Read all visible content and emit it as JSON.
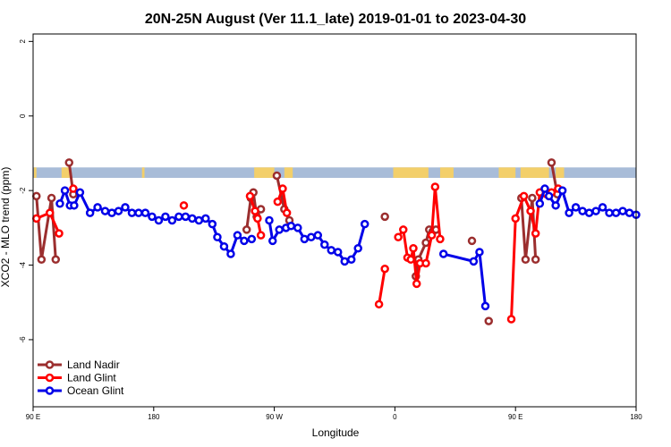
{
  "chart_data": {
    "type": "line",
    "title": "20N-25N August (Ver 11.1_late)   2019-01-01 to 2023-04-30",
    "xlabel": "Longitude",
    "ylabel": "XCO2 - MLO trend (ppm)",
    "xlim": [
      0,
      360
    ],
    "ylim": [
      -7.8,
      2.2
    ],
    "x_ticks": [
      {
        "value": 0,
        "label": "90 E"
      },
      {
        "value": 72,
        "label": "180"
      },
      {
        "value": 144,
        "label": "90 W"
      },
      {
        "value": 216,
        "label": "0"
      },
      {
        "value": 288,
        "label": "90 E"
      },
      {
        "value": 360,
        "label": "180"
      }
    ],
    "y_ticks": [
      {
        "value": 2,
        "label": "2"
      },
      {
        "value": 0,
        "label": "0"
      },
      {
        "value": -2,
        "label": "-2"
      },
      {
        "value": -4,
        "label": "-4"
      },
      {
        "value": -6,
        "label": "-6"
      }
    ],
    "grid": false,
    "legend_position": "bottom-left",
    "land_strip": {
      "y_top": -1.38,
      "y_bottom": -1.66,
      "ocean_color": "#a8bcd8",
      "land_color": "#f3cf6a",
      "land_spans": [
        [
          0.5,
          2
        ],
        [
          17,
          22.5
        ],
        [
          65,
          66.5
        ],
        [
          132,
          144
        ],
        [
          150,
          155
        ],
        [
          215,
          236
        ],
        [
          243,
          251
        ],
        [
          278,
          288
        ],
        [
          291,
          308
        ],
        [
          312,
          317
        ]
      ]
    },
    "series": [
      {
        "name": "Land Nadir",
        "color": "#9b2e2e",
        "segments": [
          [
            [
              2,
              -2.15
            ],
            [
              5,
              -3.85
            ],
            [
              11,
              -2.2
            ],
            [
              13.5,
              -3.85
            ]
          ],
          [
            [
              21.5,
              -1.25
            ],
            [
              24,
              -2.1
            ]
          ],
          [
            [
              127.5,
              -3.05
            ],
            [
              130,
              -2.2
            ],
            [
              131.5,
              -2.05
            ],
            [
              133.5,
              -2.7
            ],
            [
              136,
              -2.5
            ]
          ],
          [
            [
              145.5,
              -1.6
            ],
            [
              150,
              -2.5
            ],
            [
              153,
              -2.8
            ]
          ],
          [
            [
              210,
              -2.7
            ]
          ],
          [
            [
              228.5,
              -4.3
            ],
            [
              230,
              -3.85
            ],
            [
              234.5,
              -3.4
            ],
            [
              236.5,
              -3.05
            ],
            [
              238.5,
              -3.1
            ],
            [
              240.5,
              -3.05
            ]
          ],
          [
            [
              262,
              -3.35
            ]
          ],
          [
            [
              272,
              -5.5
            ]
          ],
          [
            [
              291.5,
              -2.2
            ],
            [
              294,
              -3.85
            ],
            [
              298,
              -2.2
            ],
            [
              300,
              -3.85
            ]
          ],
          [
            [
              309.5,
              -1.25
            ],
            [
              313,
              -2.1
            ]
          ]
        ]
      },
      {
        "name": "Land Glint",
        "color": "#ff0000",
        "segments": [
          [
            [
              2,
              -2.75
            ],
            [
              10,
              -2.6
            ],
            [
              15.5,
              -3.15
            ]
          ],
          [
            [
              24,
              -1.95
            ]
          ],
          [
            [
              90,
              -2.4
            ]
          ],
          [
            [
              129.5,
              -2.15
            ],
            [
              132.5,
              -2.55
            ],
            [
              134,
              -2.75
            ],
            [
              136,
              -3.2
            ]
          ],
          [
            [
              146,
              -2.3
            ],
            [
              149,
              -1.95
            ],
            [
              151.5,
              -2.6
            ]
          ],
          [
            [
              206.5,
              -5.05
            ],
            [
              210,
              -4.1
            ]
          ],
          [
            [
              218,
              -3.25
            ],
            [
              221,
              -3.05
            ],
            [
              223.5,
              -3.8
            ],
            [
              225.5,
              -3.85
            ],
            [
              227,
              -3.55
            ],
            [
              229,
              -4.5
            ],
            [
              231,
              -3.95
            ],
            [
              234.5,
              -3.95
            ],
            [
              238,
              -3.2
            ],
            [
              240,
              -1.9
            ],
            [
              243,
              -3.3
            ]
          ],
          [
            [
              285.5,
              -5.45
            ],
            [
              288,
              -2.75
            ],
            [
              293,
              -2.15
            ],
            [
              297,
              -2.55
            ],
            [
              300,
              -3.15
            ],
            [
              302.5,
              -2.05
            ],
            [
              306.5,
              -2.1
            ],
            [
              309.5,
              -2.05
            ],
            [
              313.5,
              -1.95
            ]
          ]
        ]
      },
      {
        "name": "Ocean Glint",
        "color": "#0000e8",
        "segments": [
          [
            [
              16,
              -2.35
            ],
            [
              19,
              -2
            ],
            [
              22,
              -2.4
            ],
            [
              24.5,
              -2.4
            ],
            [
              28,
              -2.05
            ],
            [
              34,
              -2.6
            ],
            [
              38.5,
              -2.45
            ],
            [
              43,
              -2.55
            ],
            [
              47,
              -2.6
            ],
            [
              51,
              -2.55
            ],
            [
              55,
              -2.45
            ],
            [
              59,
              -2.6
            ],
            [
              63,
              -2.6
            ],
            [
              67,
              -2.6
            ],
            [
              71,
              -2.7
            ],
            [
              75,
              -2.8
            ],
            [
              79,
              -2.7
            ],
            [
              83,
              -2.8
            ],
            [
              87,
              -2.7
            ],
            [
              91,
              -2.7
            ],
            [
              95,
              -2.75
            ],
            [
              99,
              -2.8
            ],
            [
              103,
              -2.75
            ],
            [
              107,
              -2.9
            ],
            [
              110,
              -3.25
            ],
            [
              114,
              -3.5
            ],
            [
              118,
              -3.7
            ],
            [
              122,
              -3.2
            ],
            [
              126,
              -3.35
            ],
            [
              130.5,
              -3.3
            ]
          ],
          [
            [
              141,
              -2.8
            ],
            [
              143,
              -3.35
            ],
            [
              147,
              -3.05
            ],
            [
              151,
              -3
            ],
            [
              154,
              -2.95
            ],
            [
              158,
              -3.0
            ],
            [
              162,
              -3.3
            ],
            [
              166,
              -3.25
            ],
            [
              170,
              -3.2
            ],
            [
              174,
              -3.45
            ],
            [
              178,
              -3.6
            ],
            [
              182,
              -3.65
            ],
            [
              186,
              -3.9
            ],
            [
              190,
              -3.85
            ],
            [
              194,
              -3.55
            ],
            [
              198,
              -2.9
            ]
          ],
          [
            [
              245,
              -3.7
            ],
            [
              263,
              -3.9
            ],
            [
              266.5,
              -3.65
            ],
            [
              270,
              -5.1
            ]
          ],
          [
            [
              302.5,
              -2.35
            ],
            [
              305.5,
              -1.95
            ],
            [
              308,
              -2.15
            ],
            [
              312,
              -2.4
            ],
            [
              316,
              -2.0
            ],
            [
              320,
              -2.6
            ],
            [
              324,
              -2.45
            ],
            [
              328,
              -2.55
            ],
            [
              332,
              -2.6
            ],
            [
              336,
              -2.55
            ],
            [
              340,
              -2.45
            ],
            [
              344,
              -2.6
            ],
            [
              348,
              -2.6
            ],
            [
              352,
              -2.55
            ],
            [
              356,
              -2.6
            ],
            [
              360,
              -2.65
            ]
          ]
        ]
      }
    ]
  }
}
